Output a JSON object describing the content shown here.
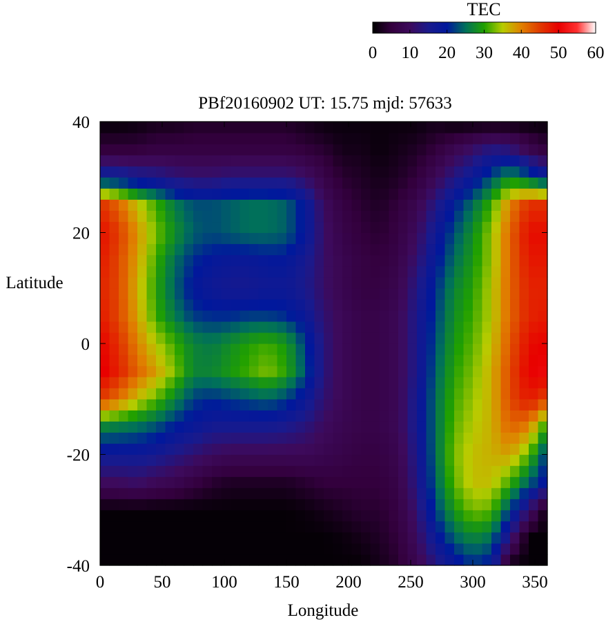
{
  "chart_data": {
    "type": "heatmap",
    "title": "PBf20160902  UT: 15.75  mjd: 57633",
    "xlabel": "Longitude",
    "ylabel": "Latitude",
    "xlim": [
      0,
      360
    ],
    "ylim": [
      -40,
      40
    ],
    "x_ticks": [
      0,
      50,
      100,
      150,
      200,
      250,
      300,
      350
    ],
    "y_ticks": [
      -40,
      -20,
      0,
      20,
      40
    ],
    "grid": false,
    "colorbar": {
      "label": "TEC",
      "range": [
        0,
        60
      ],
      "ticks": [
        0,
        10,
        20,
        30,
        40,
        50,
        60
      ],
      "placement": "top-right",
      "stops": [
        [
          0,
          "#000000"
        ],
        [
          5,
          "#33003d"
        ],
        [
          10,
          "#3d0a5c"
        ],
        [
          15,
          "#1a1a8c"
        ],
        [
          20,
          "#00189c"
        ],
        [
          25,
          "#00705a"
        ],
        [
          30,
          "#20a000"
        ],
        [
          35,
          "#b8cc00"
        ],
        [
          40,
          "#e08000"
        ],
        [
          45,
          "#e03a00"
        ],
        [
          50,
          "#e80000"
        ],
        [
          55,
          "#ff3030"
        ],
        [
          60,
          "#ffffff"
        ]
      ]
    },
    "grid_resolution": {
      "lon_step": 7.5,
      "lat_step": 2.0
    },
    "sample_values": {
      "lon": [
        0,
        15,
        30,
        45,
        60,
        75,
        90,
        105,
        120,
        135,
        150,
        165,
        180,
        195,
        210,
        225,
        240,
        255,
        270,
        285,
        300,
        315,
        330,
        345,
        360
      ],
      "lat": [
        -40,
        -35,
        -30,
        -25,
        -20,
        -15,
        -10,
        -5,
        0,
        5,
        10,
        15,
        20,
        25,
        30,
        35,
        40
      ],
      "tec": [
        [
          0.5,
          0.5,
          0.5,
          0.5,
          0.5,
          0.5,
          0.5,
          0.5,
          0.5,
          0.5,
          0.5,
          0.5,
          0.5,
          0.5,
          0.5,
          2,
          4,
          8,
          13,
          18,
          21,
          19,
          1,
          0.5,
          0.5
        ],
        [
          0.5,
          0.5,
          0.5,
          0.5,
          0.5,
          0.5,
          0.5,
          0.5,
          0.5,
          0.5,
          0.5,
          0.5,
          0.5,
          1,
          2,
          3,
          5,
          10,
          18,
          24,
          27,
          25,
          13,
          0.5,
          0.5
        ],
        [
          0.5,
          0.5,
          0.5,
          0.5,
          0.5,
          0.5,
          0.5,
          0.5,
          0.5,
          0.5,
          0.5,
          1,
          2,
          3,
          4,
          4,
          6,
          12,
          22,
          29,
          33,
          32,
          22,
          12,
          0.5
        ],
        [
          10,
          10,
          11,
          9,
          8,
          6,
          4,
          3,
          3,
          3,
          3,
          4,
          5,
          5,
          5,
          5,
          7,
          14,
          24,
          32,
          36,
          36,
          31,
          24,
          18
        ],
        [
          17,
          17,
          17,
          16,
          14,
          12,
          10,
          9,
          9,
          9,
          9,
          9,
          8,
          7,
          6,
          6,
          8,
          15,
          25,
          33,
          36,
          37,
          38,
          32,
          21
        ],
        [
          27,
          26,
          25,
          23,
          20,
          18,
          16,
          16,
          16,
          16,
          15,
          13,
          10,
          8,
          7,
          7,
          9,
          16,
          25,
          32,
          35,
          37,
          42,
          40,
          29
        ],
        [
          45,
          41,
          36,
          32,
          27,
          22,
          21,
          22,
          23,
          24,
          22,
          18,
          12,
          9,
          7,
          7,
          9,
          16,
          25,
          31,
          34,
          37,
          44,
          48,
          44
        ],
        [
          51,
          47,
          42,
          38,
          33,
          27,
          27,
          29,
          31,
          33,
          30,
          23,
          13,
          9,
          7,
          7,
          9,
          15,
          24,
          30,
          33,
          37,
          44,
          50,
          51
        ],
        [
          50,
          46,
          40,
          35,
          31,
          27,
          26,
          28,
          30,
          31,
          29,
          22,
          13,
          9,
          7,
          7,
          9,
          15,
          23,
          29,
          32,
          36,
          43,
          49,
          50
        ],
        [
          48,
          44,
          38,
          31,
          26,
          22,
          21,
          21,
          22,
          22,
          21,
          18,
          12,
          9,
          7,
          7,
          9,
          15,
          22,
          28,
          31,
          35,
          42,
          47,
          48
        ],
        [
          47,
          44,
          37,
          30,
          24,
          19,
          17,
          16,
          16,
          17,
          17,
          15,
          11,
          8,
          6,
          6,
          8,
          14,
          21,
          27,
          30,
          35,
          42,
          47,
          47
        ],
        [
          48,
          44,
          38,
          31,
          25,
          21,
          19,
          18,
          18,
          19,
          19,
          16,
          11,
          8,
          6,
          5,
          7,
          12,
          19,
          25,
          29,
          34,
          42,
          48,
          48
        ],
        [
          49,
          45,
          39,
          33,
          28,
          24,
          23,
          24,
          25,
          25,
          24,
          19,
          11,
          7,
          5,
          4,
          6,
          10,
          17,
          23,
          28,
          34,
          42,
          49,
          49
        ],
        [
          46,
          42,
          36,
          31,
          26,
          23,
          23,
          24,
          25,
          25,
          24,
          19,
          10,
          6,
          4,
          3,
          5,
          8,
          14,
          20,
          25,
          31,
          40,
          46,
          46
        ],
        [
          19,
          18,
          16,
          15,
          13,
          12,
          12,
          13,
          13,
          13,
          13,
          11,
          7,
          4,
          3,
          2,
          3,
          5,
          9,
          14,
          18,
          23,
          28,
          24,
          19
        ],
        [
          5,
          5,
          5,
          6,
          6,
          6,
          6,
          6,
          6,
          6,
          6,
          5,
          4,
          2,
          2,
          1,
          2,
          3,
          5,
          8,
          11,
          14,
          13,
          8,
          5
        ],
        [
          0.5,
          0.5,
          1,
          2,
          2,
          3,
          3,
          3,
          3,
          3,
          3,
          2,
          1,
          1,
          1,
          1,
          1,
          1,
          2,
          0.5,
          0.5,
          0.5,
          0.5,
          0.5,
          0.5
        ]
      ]
    }
  }
}
